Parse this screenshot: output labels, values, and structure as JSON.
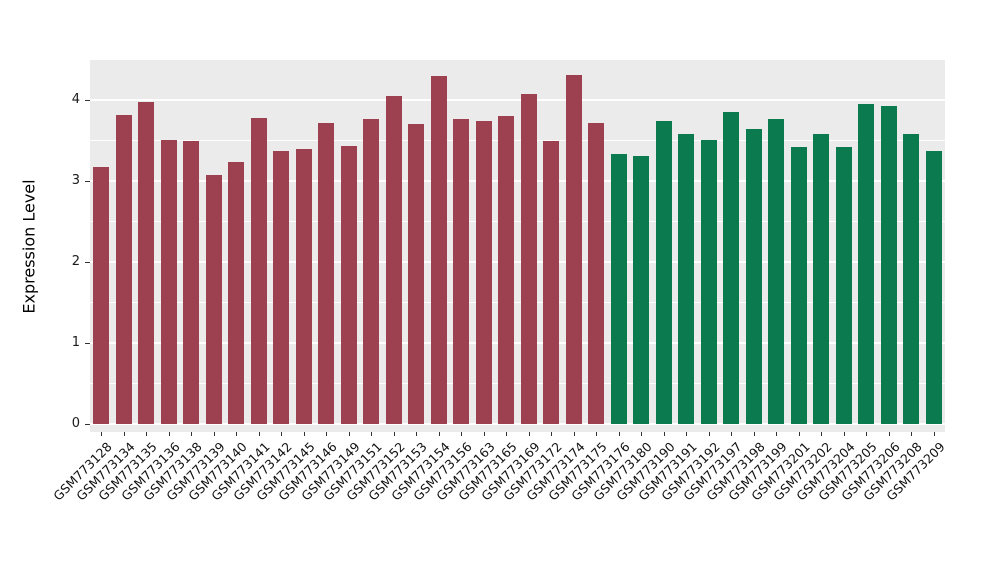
{
  "chart_data": {
    "type": "bar",
    "title": "",
    "xlabel": "",
    "ylabel": "Expression Level",
    "ylim": [
      0,
      4.49
    ],
    "yticks": [
      0,
      1,
      2,
      3,
      4
    ],
    "yticks_minor": [
      0.5,
      1.5,
      2.5,
      3.5
    ],
    "grid": "on",
    "legend": "none",
    "panel_background": "#EBEBEB",
    "gridline_color": "#FFFFFF",
    "categories": [
      "GSM773128",
      "GSM773134",
      "GSM773135",
      "GSM773136",
      "GSM773138",
      "GSM773139",
      "GSM773140",
      "GSM773141",
      "GSM773142",
      "GSM773145",
      "GSM773146",
      "GSM773149",
      "GSM773151",
      "GSM773152",
      "GSM773153",
      "GSM773154",
      "GSM773156",
      "GSM773163",
      "GSM773165",
      "GSM773169",
      "GSM773172",
      "GSM773174",
      "GSM773175",
      "GSM773176",
      "GSM773180",
      "GSM773190",
      "GSM773191",
      "GSM773192",
      "GSM773197",
      "GSM773198",
      "GSM773199",
      "GSM773201",
      "GSM773202",
      "GSM773204",
      "GSM773205",
      "GSM773206",
      "GSM773208",
      "GSM773209"
    ],
    "values": [
      3.17,
      3.82,
      3.97,
      3.51,
      3.5,
      3.08,
      3.24,
      3.78,
      3.37,
      3.4,
      3.71,
      3.43,
      3.77,
      4.05,
      3.7,
      4.3,
      3.76,
      3.74,
      3.8,
      4.08,
      3.49,
      4.31,
      3.71,
      3.33,
      3.31,
      3.74,
      3.58,
      3.51,
      3.85,
      3.64,
      3.76,
      3.42,
      3.58,
      3.42,
      3.95,
      3.93,
      3.58,
      3.37
    ],
    "groups": [
      "group1",
      "group1",
      "group1",
      "group1",
      "group1",
      "group1",
      "group1",
      "group1",
      "group1",
      "group1",
      "group1",
      "group1",
      "group1",
      "group1",
      "group1",
      "group1",
      "group1",
      "group1",
      "group1",
      "group1",
      "group1",
      "group1",
      "group1",
      "group2",
      "group2",
      "group2",
      "group2",
      "group2",
      "group2",
      "group2",
      "group2",
      "group2",
      "group2",
      "group2",
      "group2",
      "group2",
      "group2",
      "group2"
    ],
    "group_colors": {
      "group1": "#9D4150",
      "group2": "#0B7A4F"
    }
  }
}
